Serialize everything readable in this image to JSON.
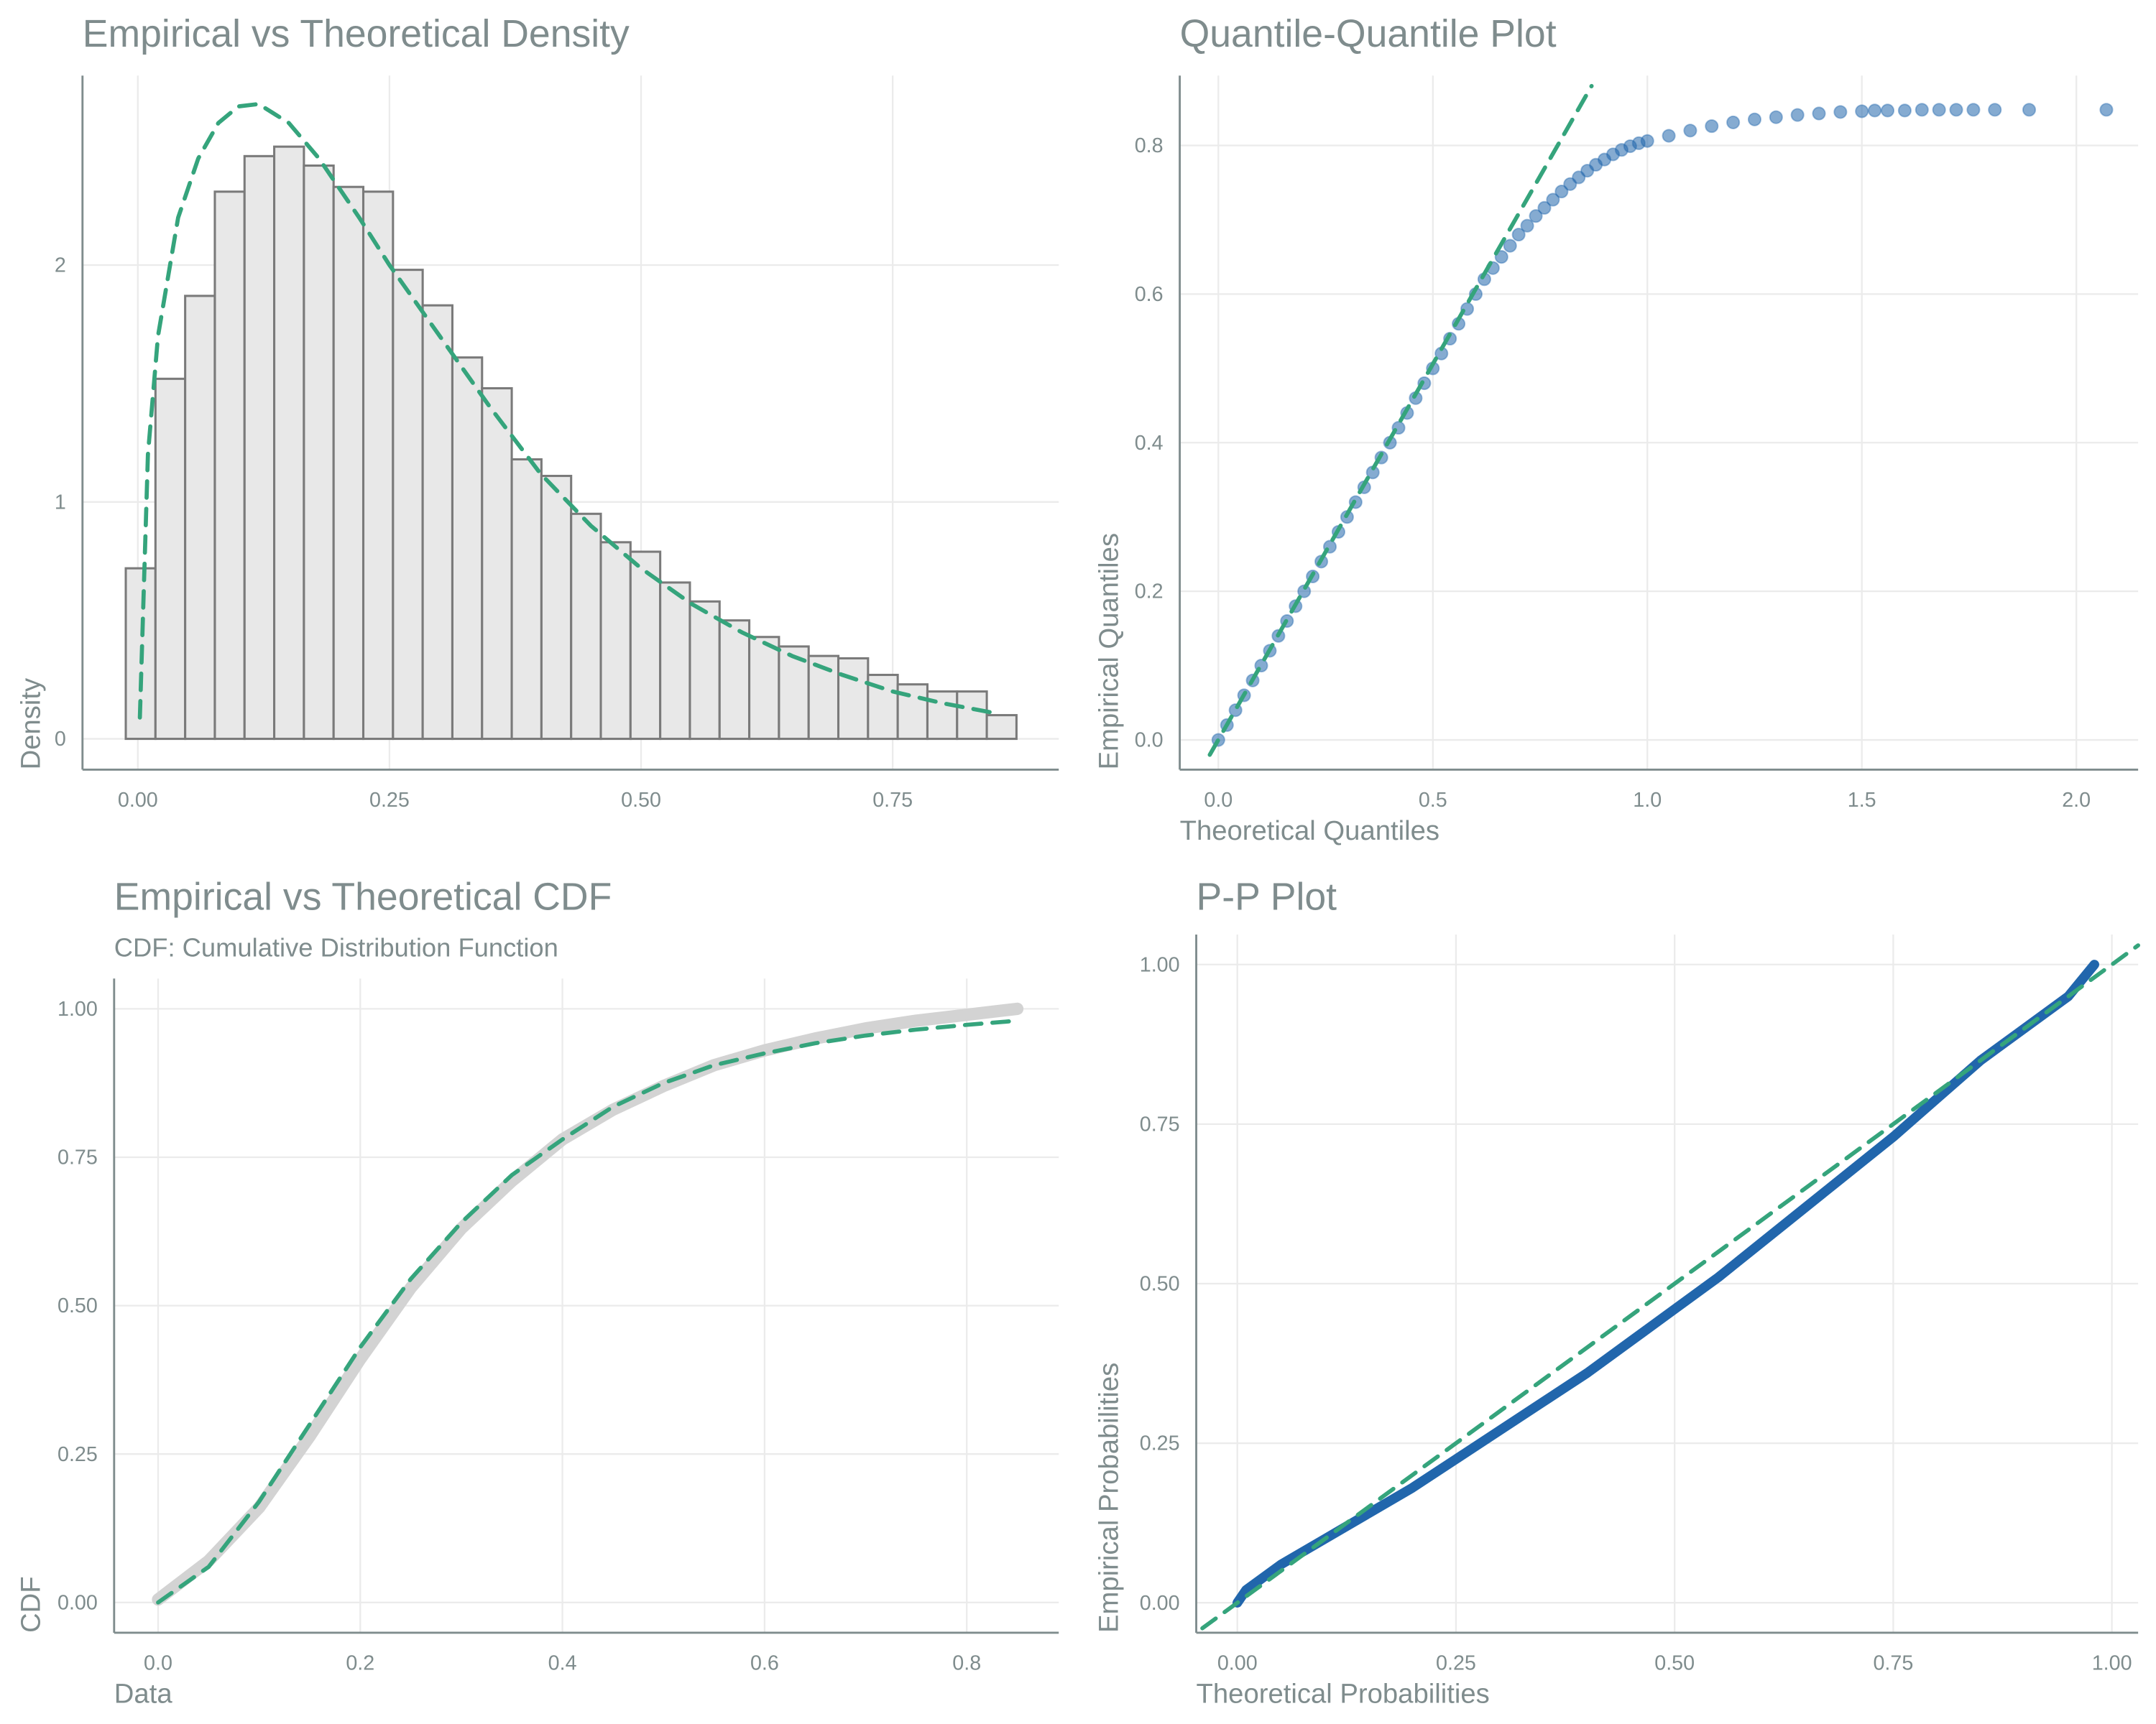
{
  "chart_data": [
    {
      "type": "histogram",
      "title": "Empirical vs Theoretical Density",
      "ylabel": "Density",
      "bins": [
        -0.012,
        0.0175,
        0.047,
        0.0765,
        0.106,
        0.1355,
        0.165,
        0.1945,
        0.224,
        0.2535,
        0.283,
        0.3125,
        0.342,
        0.3715,
        0.401,
        0.4305,
        0.46,
        0.4895,
        0.519,
        0.5485,
        0.578,
        0.6075,
        0.637,
        0.6665,
        0.696,
        0.7255,
        0.755,
        0.7845,
        0.814,
        0.8435,
        0.873
      ],
      "values": [
        0.72,
        1.52,
        1.87,
        2.31,
        2.46,
        2.5,
        2.42,
        2.33,
        2.31,
        1.98,
        1.83,
        1.61,
        1.48,
        1.18,
        1.11,
        0.95,
        0.83,
        0.79,
        0.66,
        0.58,
        0.5,
        0.43,
        0.39,
        0.35,
        0.34,
        0.27,
        0.23,
        0.2,
        0.2,
        0.1
      ],
      "color": "#e8e8e8",
      "edgecolor": "#7a7a7a",
      "lines": [
        {
          "x": [
            0.002,
            0.01,
            0.02,
            0.04,
            0.06,
            0.08,
            0.1,
            0.12,
            0.15,
            0.18,
            0.22,
            0.25,
            0.3,
            0.35,
            0.4,
            0.45,
            0.5,
            0.55,
            0.6,
            0.65,
            0.7,
            0.75,
            0.8,
            0.85
          ],
          "y": [
            0.09,
            1.2,
            1.7,
            2.2,
            2.45,
            2.6,
            2.67,
            2.68,
            2.6,
            2.45,
            2.2,
            2.0,
            1.7,
            1.4,
            1.12,
            0.9,
            0.72,
            0.57,
            0.45,
            0.35,
            0.27,
            0.2,
            0.15,
            0.11
          ],
          "color": "#35a47c",
          "linestyle": "dashed",
          "linewidth": 3
        }
      ],
      "xlim": [
        -0.055,
        0.915
      ],
      "ylim": [
        -0.13,
        2.8
      ],
      "xticks": [
        {
          "value": 0,
          "label": "0.00"
        },
        {
          "value": 0.25,
          "label": "0.25"
        },
        {
          "value": 0.5,
          "label": "0.50"
        },
        {
          "value": 0.75,
          "label": "0.75"
        }
      ],
      "yticks": [
        0,
        1,
        2
      ],
      "grid": true
    },
    {
      "type": "scatter",
      "title": "Quantile-Quantile Plot",
      "xlabel": "Theoretical Quantiles",
      "ylabel": "Empirical Quantiles",
      "x": [
        0,
        0.02,
        0.04,
        0.06,
        0.08,
        0.1,
        0.12,
        0.14,
        0.16,
        0.18,
        0.2,
        0.22,
        0.24,
        0.26,
        0.28,
        0.3,
        0.32,
        0.34,
        0.36,
        0.38,
        0.4,
        0.42,
        0.44,
        0.46,
        0.48,
        0.5,
        0.52,
        0.54,
        0.56,
        0.58,
        0.6,
        0.62,
        0.64,
        0.66,
        0.68,
        0.7,
        0.72,
        0.74,
        0.76,
        0.78,
        0.8,
        0.82,
        0.84,
        0.86,
        0.88,
        0.9,
        0.92,
        0.94,
        0.96,
        0.98,
        1.0,
        1.05,
        1.1,
        1.15,
        1.2,
        1.25,
        1.3,
        1.35,
        1.4,
        1.45,
        1.5,
        1.53,
        1.56,
        1.6,
        1.64,
        1.68,
        1.72,
        1.76,
        1.81,
        1.89,
        2.07
      ],
      "values": [
        0,
        0.02,
        0.04,
        0.06,
        0.08,
        0.1,
        0.12,
        0.14,
        0.16,
        0.18,
        0.2,
        0.22,
        0.24,
        0.26,
        0.28,
        0.3,
        0.32,
        0.34,
        0.36,
        0.38,
        0.4,
        0.42,
        0.44,
        0.46,
        0.48,
        0.5,
        0.52,
        0.54,
        0.56,
        0.58,
        0.6,
        0.62,
        0.635,
        0.65,
        0.665,
        0.68,
        0.692,
        0.705,
        0.716,
        0.727,
        0.738,
        0.748,
        0.757,
        0.766,
        0.774,
        0.781,
        0.788,
        0.794,
        0.799,
        0.803,
        0.806,
        0.813,
        0.82,
        0.826,
        0.831,
        0.835,
        0.838,
        0.841,
        0.843,
        0.845,
        0.846,
        0.847,
        0.847,
        0.847,
        0.848,
        0.848,
        0.848,
        0.848,
        0.848,
        0.848,
        0.848
      ],
      "color": "#2166ac",
      "lines": [
        {
          "x": [
            -0.02,
            0.87
          ],
          "y": [
            -0.02,
            0.88
          ],
          "color": "#35a47c",
          "linestyle": "dashed",
          "linewidth": 3
        }
      ],
      "xlim": [
        -0.09,
        2.144
      ],
      "ylim": [
        -0.04,
        0.894
      ],
      "xticks": [
        {
          "value": 0,
          "label": "0.0"
        },
        {
          "value": 0.5,
          "label": "0.5"
        },
        {
          "value": 1,
          "label": "1.0"
        },
        {
          "value": 1.5,
          "label": "1.5"
        },
        {
          "value": 2,
          "label": "2.0"
        }
      ],
      "yticks": [
        {
          "value": 0,
          "label": "0.0"
        },
        0.2,
        0.4,
        0.6,
        0.8
      ],
      "grid": true
    },
    {
      "type": "line",
      "title": "Empirical vs Theoretical CDF",
      "subtitle": "CDF: Cumulative Distribution Function",
      "xlabel": "Data",
      "ylabel": "CDF",
      "lines": [
        {
          "x": [
            0,
            0.05,
            0.1,
            0.15,
            0.2,
            0.25,
            0.3,
            0.35,
            0.4,
            0.45,
            0.5,
            0.55,
            0.6,
            0.65,
            0.7,
            0.75,
            0.8,
            0.85
          ],
          "y": [
            0.005,
            0.07,
            0.16,
            0.28,
            0.41,
            0.53,
            0.63,
            0.71,
            0.78,
            0.83,
            0.87,
            0.905,
            0.93,
            0.95,
            0.967,
            0.98,
            0.99,
            1.0
          ],
          "color": "#d3d3d3",
          "linestyle": "solid",
          "linewidth": 9
        },
        {
          "x": [
            0,
            0.05,
            0.1,
            0.15,
            0.2,
            0.25,
            0.3,
            0.35,
            0.4,
            0.45,
            0.5,
            0.55,
            0.6,
            0.65,
            0.7,
            0.75,
            0.8,
            0.85
          ],
          "y": [
            0,
            0.06,
            0.17,
            0.3,
            0.43,
            0.545,
            0.64,
            0.72,
            0.78,
            0.835,
            0.875,
            0.905,
            0.925,
            0.942,
            0.955,
            0.965,
            0.973,
            0.98
          ],
          "color": "#35a47c",
          "linestyle": "dashed",
          "linewidth": 3
        }
      ],
      "xlim": [
        -0.0435,
        0.891
      ],
      "ylim": [
        -0.051,
        1.051
      ],
      "xticks": [
        {
          "value": 0,
          "label": "0.0"
        },
        0.2,
        0.4,
        0.6,
        0.8
      ],
      "yticks": [
        {
          "value": 0,
          "label": "0.00"
        },
        0.25,
        {
          "value": 0.5,
          "label": "0.50"
        },
        0.75,
        {
          "value": 1,
          "label": "1.00"
        }
      ],
      "grid": true
    },
    {
      "type": "line",
      "title": "P-P Plot",
      "xlabel": "Theoretical Probabilities",
      "ylabel": "Empirical Probabilities",
      "lines": [
        {
          "x": [
            0,
            0.01,
            0.05,
            0.1,
            0.15,
            0.2,
            0.25,
            0.3,
            0.35,
            0.4,
            0.45,
            0.5,
            0.55,
            0.6,
            0.65,
            0.7,
            0.75,
            0.8,
            0.85,
            0.9,
            0.95,
            0.98
          ],
          "y": [
            0,
            0.02,
            0.06,
            0.1,
            0.14,
            0.18,
            0.225,
            0.27,
            0.315,
            0.36,
            0.41,
            0.46,
            0.51,
            0.565,
            0.62,
            0.675,
            0.73,
            0.79,
            0.85,
            0.9,
            0.95,
            1.0
          ],
          "color": "#2166ac",
          "linestyle": "solid",
          "linewidth": 7
        },
        {
          "x": [
            -0.04,
            1.03
          ],
          "y": [
            -0.04,
            1.03
          ],
          "color": "#35a47c",
          "linestyle": "dashed",
          "linewidth": 3
        }
      ],
      "xlim": [
        -0.047,
        1.03
      ],
      "ylim": [
        -0.047,
        1.047
      ],
      "xticks": [
        {
          "value": 0,
          "label": "0.00"
        },
        0.25,
        {
          "value": 0.5,
          "label": "0.50"
        },
        0.75,
        {
          "value": 1,
          "label": "1.00"
        }
      ],
      "yticks": [
        {
          "value": 0,
          "label": "0.00"
        },
        0.25,
        {
          "value": 0.5,
          "label": "0.50"
        },
        0.75,
        {
          "value": 1,
          "label": "1.00"
        }
      ],
      "grid": true
    }
  ]
}
